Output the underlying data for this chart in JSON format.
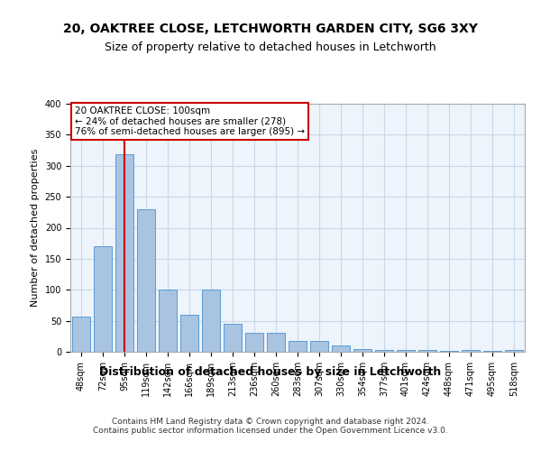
{
  "title1": "20, OAKTREE CLOSE, LETCHWORTH GARDEN CITY, SG6 3XY",
  "title2": "Size of property relative to detached houses in Letchworth",
  "xlabel": "Distribution of detached houses by size in Letchworth",
  "ylabel": "Number of detached properties",
  "categories": [
    "48sqm",
    "72sqm",
    "95sqm",
    "119sqm",
    "142sqm",
    "166sqm",
    "189sqm",
    "213sqm",
    "236sqm",
    "260sqm",
    "283sqm",
    "307sqm",
    "330sqm",
    "354sqm",
    "377sqm",
    "401sqm",
    "424sqm",
    "448sqm",
    "471sqm",
    "495sqm",
    "518sqm"
  ],
  "values": [
    57,
    170,
    318,
    230,
    100,
    60,
    100,
    45,
    30,
    30,
    18,
    18,
    10,
    4,
    3,
    3,
    3,
    1,
    3,
    1,
    3
  ],
  "bar_color": "#a8c4e0",
  "bar_edge_color": "#5b9bd5",
  "grid_color": "#c8d8e8",
  "bg_color": "#eef4fb",
  "red_line_x": 2,
  "red_line_color": "#cc0000",
  "annotation_box_text": "20 OAKTREE CLOSE: 100sqm\n← 24% of detached houses are smaller (278)\n76% of semi-detached houses are larger (895) →",
  "footer_text": "Contains HM Land Registry data © Crown copyright and database right 2024.\nContains public sector information licensed under the Open Government Licence v3.0.",
  "ylim": [
    0,
    400
  ],
  "title1_fontsize": 10,
  "title2_fontsize": 9,
  "ylabel_fontsize": 8,
  "xlabel_fontsize": 9,
  "tick_fontsize": 7,
  "annot_fontsize": 7.5,
  "footer_fontsize": 6.5
}
